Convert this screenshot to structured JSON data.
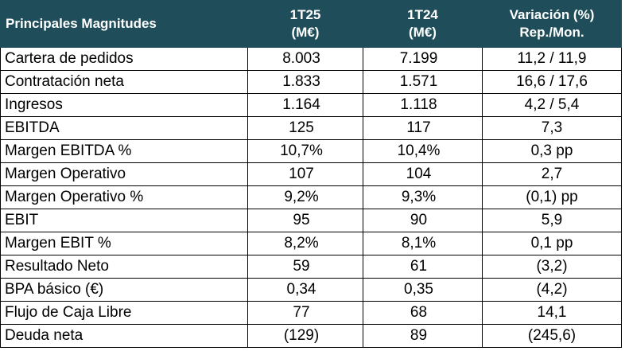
{
  "header": {
    "title": "Principales Magnitudes",
    "col1_line1": "1T25",
    "col1_line2": "(M€)",
    "col2_line1": "1T24",
    "col2_line2": "(M€)",
    "col3_line1": "Variación (%)",
    "col3_line2": "Rep./Mon."
  },
  "colors": {
    "header_bg": "#1f4e5a",
    "header_text": "#ffffff",
    "border": "#000000"
  },
  "rows": [
    {
      "label": "Cartera de pedidos",
      "q1_25": "8.003",
      "q1_24": "7.199",
      "variation": "11,2 / 11,9"
    },
    {
      "label": "Contratación neta",
      "q1_25": "1.833",
      "q1_24": "1.571",
      "variation": "16,6 / 17,6"
    },
    {
      "label": "Ingresos",
      "q1_25": "1.164",
      "q1_24": "1.118",
      "variation": "4,2 / 5,4"
    },
    {
      "label": "EBITDA",
      "q1_25": "125",
      "q1_24": "117",
      "variation": "7,3"
    },
    {
      "label": "Margen EBITDA %",
      "q1_25": "10,7%",
      "q1_24": "10,4%",
      "variation": "0,3 pp"
    },
    {
      "label": "Margen Operativo",
      "q1_25": "107",
      "q1_24": "104",
      "variation": "2,7"
    },
    {
      "label": "Margen Operativo %",
      "q1_25": "9,2%",
      "q1_24": "9,3%",
      "variation": "(0,1) pp"
    },
    {
      "label": "EBIT",
      "q1_25": "95",
      "q1_24": "90",
      "variation": "5,9"
    },
    {
      "label": "Margen EBIT %",
      "q1_25": "8,2%",
      "q1_24": "8,1%",
      "variation": "0,1 pp"
    },
    {
      "label": "Resultado Neto",
      "q1_25": "59",
      "q1_24": "61",
      "variation": "(3,2)"
    },
    {
      "label": "BPA básico (€)",
      "q1_25": "0,34",
      "q1_24": "0,35",
      "variation": "(4,2)"
    },
    {
      "label": "Flujo de Caja Libre",
      "q1_25": "77",
      "q1_24": "68",
      "variation": "14,1"
    },
    {
      "label": "Deuda neta",
      "q1_25": "(129)",
      "q1_24": "89",
      "variation": "(245,6)"
    }
  ]
}
